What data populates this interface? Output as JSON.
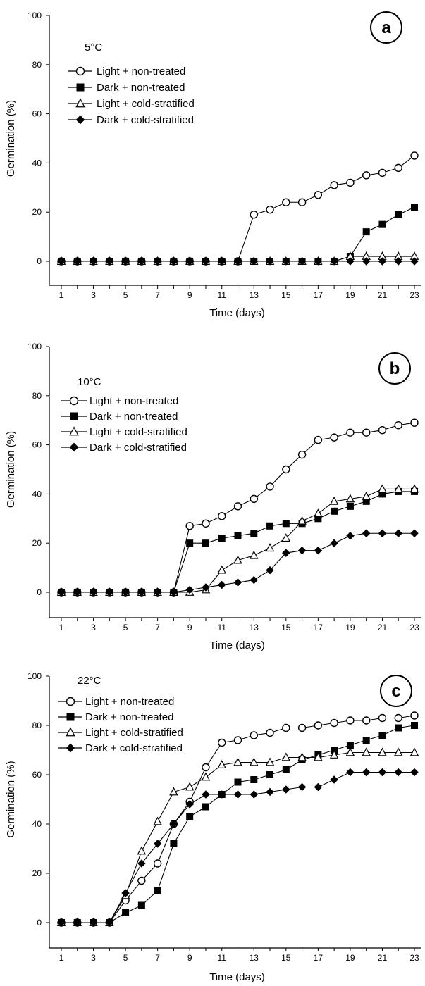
{
  "chart_data": [
    {
      "type": "line",
      "panel_label": "a",
      "temperature": "5°C",
      "xlabel": "Time (days)",
      "ylabel": "Germination (%)",
      "xlim": [
        1,
        23
      ],
      "ylim": [
        0,
        100
      ],
      "x_ticks": [
        1,
        3,
        5,
        7,
        9,
        11,
        13,
        15,
        17,
        19,
        21,
        23
      ],
      "y_ticks": [
        0,
        20,
        40,
        60,
        80,
        100
      ],
      "legend_position": "upper-left",
      "x": [
        1,
        2,
        3,
        4,
        5,
        6,
        7,
        8,
        9,
        10,
        11,
        12,
        13,
        14,
        15,
        16,
        17,
        18,
        19,
        20,
        21,
        22,
        23
      ],
      "series": [
        {
          "name": "Light + non-treated",
          "marker": "open-circle",
          "values": [
            0,
            0,
            0,
            0,
            0,
            0,
            0,
            0,
            0,
            0,
            0,
            0,
            19,
            21,
            24,
            24,
            27,
            31,
            32,
            35,
            36,
            38,
            43
          ]
        },
        {
          "name": "Dark + non-treated",
          "marker": "filled-square",
          "values": [
            0,
            0,
            0,
            0,
            0,
            0,
            0,
            0,
            0,
            0,
            0,
            0,
            0,
            0,
            0,
            0,
            0,
            0,
            2,
            12,
            15,
            19,
            22
          ]
        },
        {
          "name": "Light + cold-stratified",
          "marker": "open-triangle",
          "values": [
            0,
            0,
            0,
            0,
            0,
            0,
            0,
            0,
            0,
            0,
            0,
            0,
            0,
            0,
            0,
            0,
            0,
            0,
            2,
            2,
            2,
            2,
            2
          ]
        },
        {
          "name": "Dark + cold-stratified",
          "marker": "filled-diamond",
          "values": [
            0,
            0,
            0,
            0,
            0,
            0,
            0,
            0,
            0,
            0,
            0,
            0,
            0,
            0,
            0,
            0,
            0,
            0,
            0,
            0,
            0,
            0,
            0
          ]
        }
      ]
    },
    {
      "type": "line",
      "panel_label": "b",
      "temperature": "10°C",
      "xlabel": "Time (days)",
      "ylabel": "Germination (%)",
      "xlim": [
        1,
        23
      ],
      "ylim": [
        0,
        100
      ],
      "x_ticks": [
        1,
        3,
        5,
        7,
        9,
        11,
        13,
        15,
        17,
        19,
        21,
        23
      ],
      "y_ticks": [
        0,
        20,
        40,
        60,
        80,
        100
      ],
      "legend_position": "upper-left",
      "x": [
        1,
        2,
        3,
        4,
        5,
        6,
        7,
        8,
        9,
        10,
        11,
        12,
        13,
        14,
        15,
        16,
        17,
        18,
        19,
        20,
        21,
        22,
        23
      ],
      "series": [
        {
          "name": "Light + non-treated",
          "marker": "open-circle",
          "values": [
            0,
            0,
            0,
            0,
            0,
            0,
            0,
            0,
            27,
            28,
            31,
            35,
            38,
            43,
            50,
            56,
            62,
            63,
            65,
            65,
            66,
            68,
            69
          ]
        },
        {
          "name": "Dark + non-treated",
          "marker": "filled-square",
          "values": [
            0,
            0,
            0,
            0,
            0,
            0,
            0,
            0,
            20,
            20,
            22,
            23,
            24,
            27,
            28,
            28,
            30,
            33,
            35,
            37,
            40,
            41,
            41
          ]
        },
        {
          "name": "Light + cold-stratified",
          "marker": "open-triangle",
          "values": [
            0,
            0,
            0,
            0,
            0,
            0,
            0,
            0,
            0,
            1,
            9,
            13,
            15,
            18,
            22,
            29,
            32,
            37,
            38,
            39,
            42,
            42,
            42
          ]
        },
        {
          "name": "Dark + cold-stratified",
          "marker": "filled-diamond",
          "values": [
            0,
            0,
            0,
            0,
            0,
            0,
            0,
            0,
            1,
            2,
            3,
            4,
            5,
            9,
            16,
            17,
            17,
            20,
            23,
            24,
            24,
            24,
            24
          ]
        }
      ]
    },
    {
      "type": "line",
      "panel_label": "c",
      "temperature": "22°C",
      "xlabel": "Time (days)",
      "ylabel": "Germination (%)",
      "xlim": [
        1,
        23
      ],
      "ylim": [
        0,
        100
      ],
      "x_ticks": [
        1,
        3,
        5,
        7,
        9,
        11,
        13,
        15,
        17,
        19,
        21,
        23
      ],
      "y_ticks": [
        0,
        20,
        40,
        60,
        80,
        100
      ],
      "legend_position": "upper-left",
      "x": [
        1,
        2,
        3,
        4,
        5,
        6,
        7,
        8,
        9,
        10,
        11,
        12,
        13,
        14,
        15,
        16,
        17,
        18,
        19,
        20,
        21,
        22,
        23
      ],
      "series": [
        {
          "name": "Light + non-treated",
          "marker": "open-circle",
          "values": [
            0,
            0,
            0,
            0,
            9,
            17,
            24,
            40,
            49,
            63,
            73,
            74,
            76,
            77,
            79,
            79,
            80,
            81,
            82,
            82,
            83,
            83,
            84
          ]
        },
        {
          "name": "Dark + non-treated",
          "marker": "filled-square",
          "values": [
            0,
            0,
            0,
            0,
            4,
            7,
            13,
            32,
            43,
            47,
            52,
            57,
            58,
            60,
            62,
            66,
            68,
            70,
            72,
            74,
            76,
            79,
            80
          ]
        },
        {
          "name": "Light + cold-stratified",
          "marker": "open-triangle",
          "values": [
            0,
            0,
            0,
            0,
            11,
            29,
            41,
            53,
            55,
            59,
            64,
            65,
            65,
            65,
            67,
            67,
            67,
            68,
            69,
            69,
            69,
            69,
            69
          ]
        },
        {
          "name": "Dark + cold-stratified",
          "marker": "filled-diamond",
          "values": [
            0,
            0,
            0,
            0,
            12,
            24,
            32,
            40,
            48,
            52,
            52,
            52,
            52,
            53,
            54,
            55,
            55,
            58,
            61,
            61,
            61,
            61,
            61
          ]
        }
      ]
    }
  ]
}
